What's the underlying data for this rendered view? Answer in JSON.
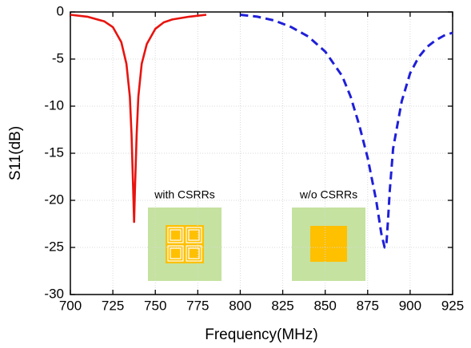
{
  "chart_data": {
    "type": "line",
    "x_label": "Frequency(MHz)",
    "y_label": "S11(dB)",
    "xlim": [
      700,
      925
    ],
    "xticks": [
      700,
      725,
      750,
      775,
      800,
      825,
      850,
      875,
      900,
      925
    ],
    "ylim": [
      -30,
      0
    ],
    "yticks": [
      0,
      -5,
      -10,
      -15,
      -20,
      -25,
      -30
    ],
    "grid": true,
    "series": [
      {
        "color": "#e8140f",
        "dashed": false,
        "x": [
          700,
          710,
          720,
          725,
          730,
          733,
          735,
          736,
          737,
          737.5,
          738,
          739,
          740,
          742,
          745,
          750,
          755,
          760,
          770,
          780
        ],
        "values": [
          -0.3,
          -0.5,
          -1.0,
          -1.6,
          -3.2,
          -5.5,
          -9,
          -13,
          -19,
          -22.3,
          -19,
          -13,
          -9,
          -5.5,
          -3.4,
          -1.8,
          -1.1,
          -0.8,
          -0.5,
          -0.3
        ]
      },
      {
        "color": "#1f1fd8",
        "dashed": true,
        "x": [
          800,
          810,
          820,
          830,
          840,
          850,
          860,
          865,
          870,
          875,
          880,
          883,
          885,
          886,
          887,
          888,
          890,
          895,
          900,
          905,
          910,
          915,
          920,
          925
        ],
        "values": [
          -0.3,
          -0.5,
          -0.9,
          -1.6,
          -2.6,
          -4.2,
          -6.8,
          -9,
          -12,
          -15.5,
          -20,
          -23.5,
          -25,
          -24.8,
          -22,
          -19,
          -14.5,
          -9.5,
          -6.5,
          -4.8,
          -3.7,
          -3,
          -2.5,
          -2.2
        ]
      }
    ],
    "annotations": [
      "with CSRRs",
      "w/o CSRRs"
    ]
  }
}
